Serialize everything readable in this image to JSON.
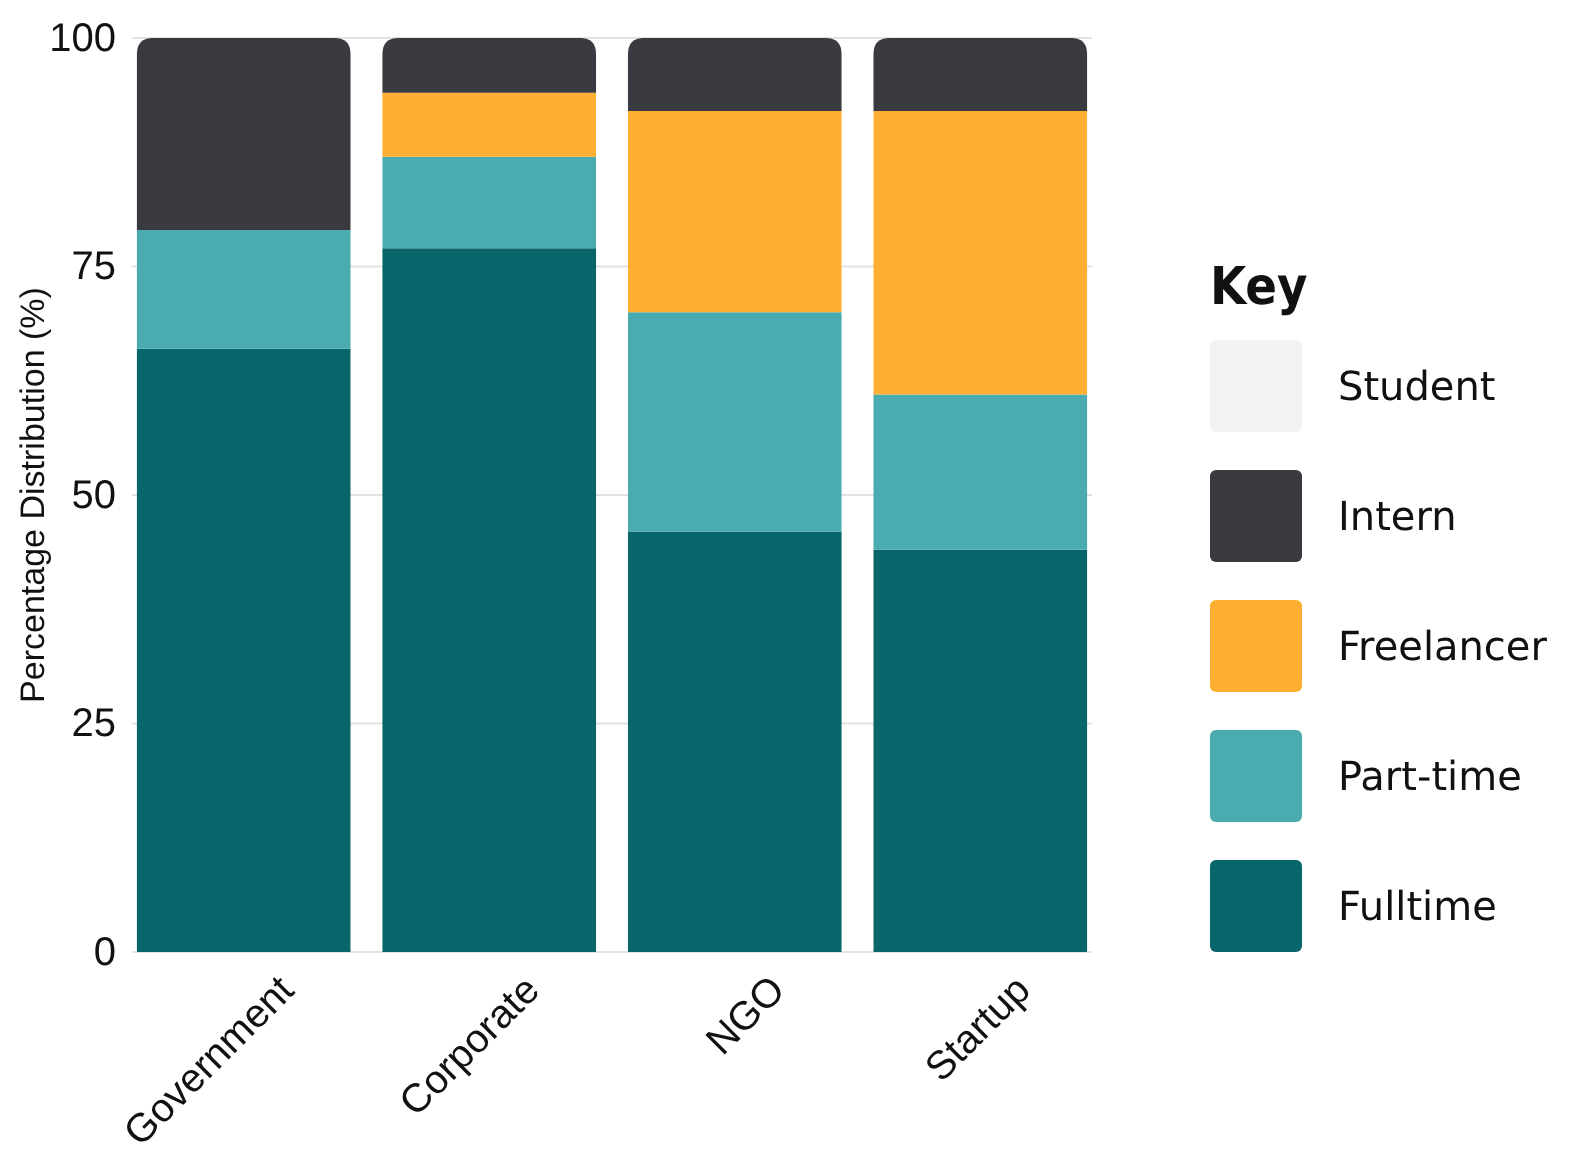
{
  "chart_data": {
    "type": "bar",
    "stacked": true,
    "ylabel": "Percentage Distribution (%)",
    "legend_title": "Key",
    "legend": "right",
    "grid": "y",
    "categories": [
      "Government",
      "Corporate",
      "NGO",
      "Startup"
    ],
    "ylim": [
      0,
      100
    ],
    "yticks": [
      0,
      25,
      50,
      75,
      100
    ],
    "series": [
      {
        "name": "Fulltime",
        "color": "#08666b",
        "values": [
          66,
          77,
          46,
          44
        ]
      },
      {
        "name": "Part-time",
        "color": "#4aabb0",
        "values": [
          13,
          10,
          24,
          17
        ]
      },
      {
        "name": "Freelancer",
        "color": "#fdae33",
        "values": [
          0,
          7,
          22,
          31
        ]
      },
      {
        "name": "Intern",
        "color": "#3a3b40",
        "values": [
          21,
          6,
          8,
          8
        ]
      },
      {
        "name": "Student",
        "color": "#f2f2f2",
        "values": [
          0,
          0,
          0,
          0
        ]
      }
    ]
  }
}
